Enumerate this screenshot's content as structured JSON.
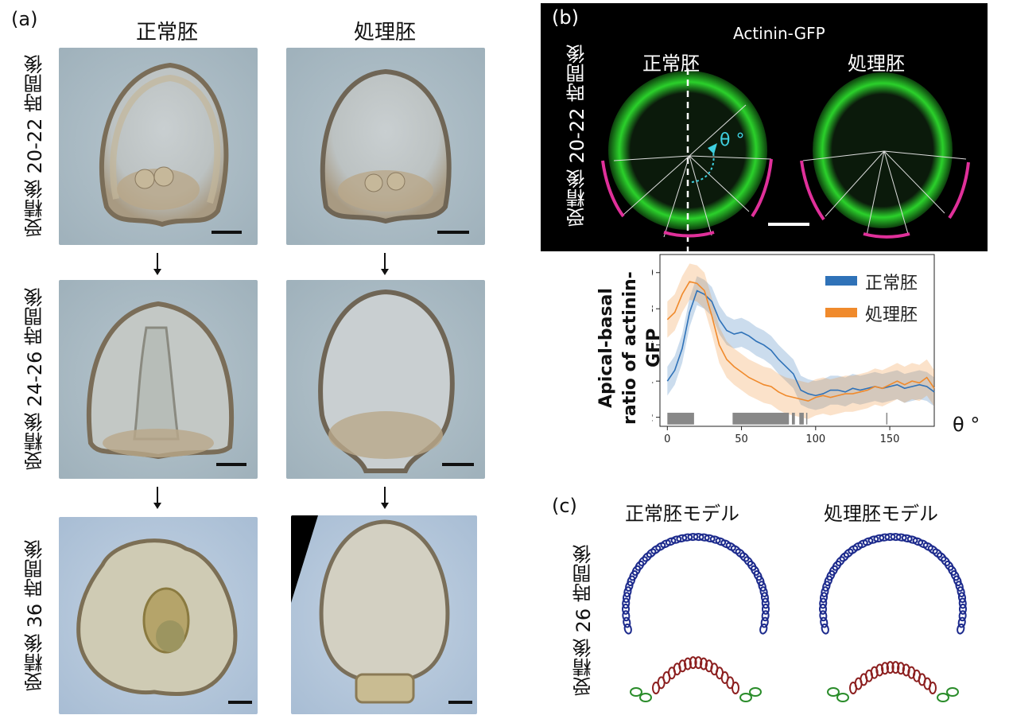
{
  "panel_a": {
    "label": "(a)",
    "columns": [
      "正常胚",
      "処理胚"
    ],
    "rows": [
      "受精後 20-22 時間後",
      "受精後 24-26 時間後",
      "受精後 36 時間後"
    ]
  },
  "panel_b": {
    "label": "(b)",
    "title": "Actinin-GFP",
    "left_label": "正常胚",
    "right_label": "処理胚",
    "row_label": "受精後 20-22 時間後",
    "angle_label": "θ °",
    "colors": {
      "green": "#2bd12b",
      "magenta": "#e0309a",
      "cyan": "#3fd0e0"
    }
  },
  "panel_c": {
    "label": "(c)",
    "left_label": "正常胚モデル",
    "right_label": "処理胚モデル",
    "row_label": "受精後 26 時間後",
    "colors": {
      "apical": "#1c2a8c",
      "bottom": "#8c1f1f",
      "side": "#2a8c2a"
    }
  },
  "chart_data": {
    "type": "line",
    "ylabel": "Apical-basal ratio of actinin-GFP",
    "xlabel": "θ °",
    "xlim": [
      -5,
      180
    ],
    "ylim": [
      1.15,
      2.1
    ],
    "xticks": [
      0,
      50,
      100,
      150
    ],
    "yticks": [
      1.2,
      1.4,
      1.6,
      1.8,
      2.0
    ],
    "legend_position": "top-right",
    "series": [
      {
        "name": "正常胚",
        "color": "#2f72b8",
        "x": [
          0,
          5,
          10,
          15,
          20,
          25,
          30,
          35,
          40,
          45,
          50,
          55,
          60,
          65,
          70,
          75,
          80,
          85,
          90,
          95,
          100,
          105,
          110,
          115,
          120,
          125,
          130,
          135,
          140,
          145,
          150,
          155,
          160,
          165,
          170,
          175,
          180
        ],
        "y": [
          1.4,
          1.46,
          1.58,
          1.78,
          1.9,
          1.88,
          1.84,
          1.74,
          1.68,
          1.66,
          1.67,
          1.65,
          1.62,
          1.6,
          1.57,
          1.52,
          1.48,
          1.44,
          1.35,
          1.33,
          1.32,
          1.33,
          1.35,
          1.35,
          1.34,
          1.36,
          1.35,
          1.36,
          1.37,
          1.36,
          1.37,
          1.38,
          1.36,
          1.37,
          1.38,
          1.37,
          1.34
        ],
        "band": 0.08
      },
      {
        "name": "処理胚",
        "color": "#f08a2c",
        "x": [
          0,
          5,
          10,
          15,
          20,
          25,
          30,
          35,
          40,
          45,
          50,
          55,
          60,
          65,
          70,
          75,
          80,
          85,
          90,
          95,
          100,
          105,
          110,
          115,
          120,
          125,
          130,
          135,
          140,
          145,
          150,
          155,
          160,
          165,
          170,
          175,
          180
        ],
        "y": [
          1.74,
          1.78,
          1.88,
          1.95,
          1.94,
          1.9,
          1.76,
          1.6,
          1.52,
          1.48,
          1.45,
          1.42,
          1.4,
          1.38,
          1.37,
          1.34,
          1.32,
          1.31,
          1.3,
          1.29,
          1.31,
          1.32,
          1.31,
          1.32,
          1.33,
          1.33,
          1.34,
          1.35,
          1.37,
          1.36,
          1.38,
          1.4,
          1.38,
          1.4,
          1.39,
          1.42,
          1.36
        ],
        "band": 0.1
      }
    ],
    "significance_bars": [
      [
        0,
        18
      ],
      [
        44,
        82
      ],
      [
        84,
        86
      ],
      [
        89,
        92
      ]
    ],
    "significance_ticks": [
      94,
      148
    ]
  }
}
